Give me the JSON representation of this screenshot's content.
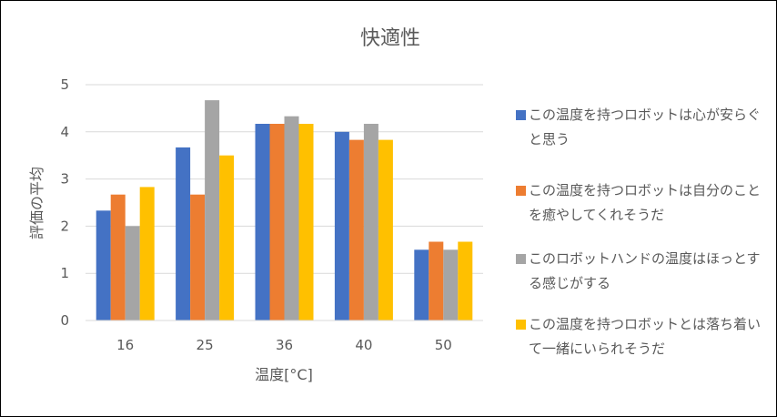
{
  "chart_data": {
    "type": "bar",
    "title": "快適性",
    "xlabel": "温度[°C]",
    "ylabel": "評価の平均",
    "categories": [
      "16",
      "25",
      "36",
      "40",
      "50"
    ],
    "ylim": [
      0,
      5
    ],
    "yticks": [
      0,
      1,
      2,
      3,
      4,
      5
    ],
    "grid": true,
    "legend_position": "right",
    "series": [
      {
        "name": "この温度を持つロボットは心が安らぐと思う",
        "color": "#4472C4",
        "values": [
          2.33,
          3.67,
          4.17,
          4.0,
          1.5
        ]
      },
      {
        "name": "この温度を持つロボットは自分のことを癒やしてくれそうだ",
        "color": "#ED7D31",
        "values": [
          2.67,
          2.67,
          4.17,
          3.83,
          1.67
        ]
      },
      {
        "name": "このロボットハンドの温度はほっとする感じがする",
        "color": "#A5A5A5",
        "values": [
          2.0,
          4.67,
          4.33,
          4.17,
          1.5
        ]
      },
      {
        "name": "この温度を持つロボットとは落ち着いて一緒にいられそうだ",
        "color": "#FFC000",
        "values": [
          2.83,
          3.5,
          4.17,
          3.83,
          1.67
        ]
      }
    ]
  }
}
